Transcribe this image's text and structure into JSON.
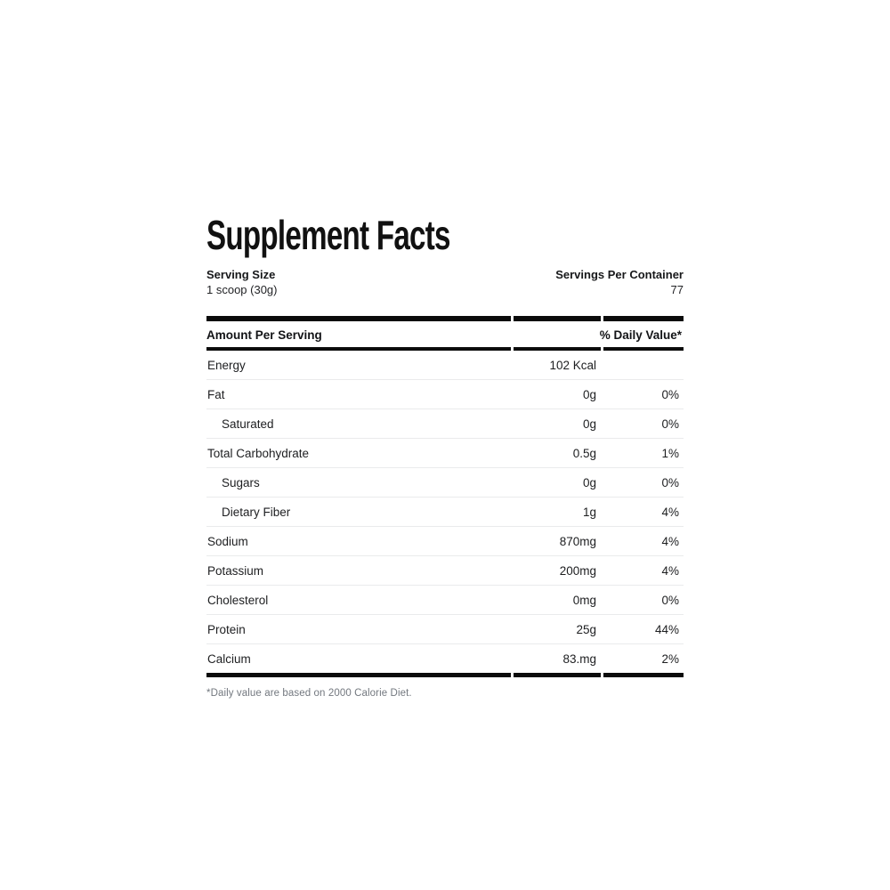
{
  "label": {
    "title": "Supplement Facts",
    "serving": {
      "serving_size_label": "Serving Size",
      "serving_size_value": "1 scoop (30g)",
      "servings_per_container_label": "Servings Per Container",
      "servings_per_container_value": "77"
    },
    "table": {
      "header": {
        "amount_label": "Amount Per Serving",
        "daily_value_label": "% Daily Value*"
      },
      "rows": [
        {
          "name": "Energy",
          "amount": "102 Kcal",
          "dv": "",
          "indent": false
        },
        {
          "name": "Fat",
          "amount": "0g",
          "dv": "0%",
          "indent": false
        },
        {
          "name": "Saturated",
          "amount": "0g",
          "dv": "0%",
          "indent": true
        },
        {
          "name": "Total Carbohydrate",
          "amount": "0.5g",
          "dv": "1%",
          "indent": false
        },
        {
          "name": "Sugars",
          "amount": "0g",
          "dv": "0%",
          "indent": true
        },
        {
          "name": "Dietary Fiber",
          "amount": "1g",
          "dv": "4%",
          "indent": true
        },
        {
          "name": "Sodium",
          "amount": "870mg",
          "dv": "4%",
          "indent": false
        },
        {
          "name": "Potassium",
          "amount": "200mg",
          "dv": "4%",
          "indent": false
        },
        {
          "name": "Cholesterol",
          "amount": "0mg",
          "dv": "0%",
          "indent": false
        },
        {
          "name": "Protein",
          "amount": "25g",
          "dv": "44%",
          "indent": false
        },
        {
          "name": "Calcium",
          "amount": "83.mg",
          "dv": "2%",
          "indent": false
        }
      ]
    },
    "footnote": "*Daily value are based on 2000 Calorie Diet."
  },
  "colors": {
    "text": "#1d1e20",
    "bar": "#0b0b0b",
    "separator": "#eaebec",
    "footnote_text": "#73787f"
  }
}
